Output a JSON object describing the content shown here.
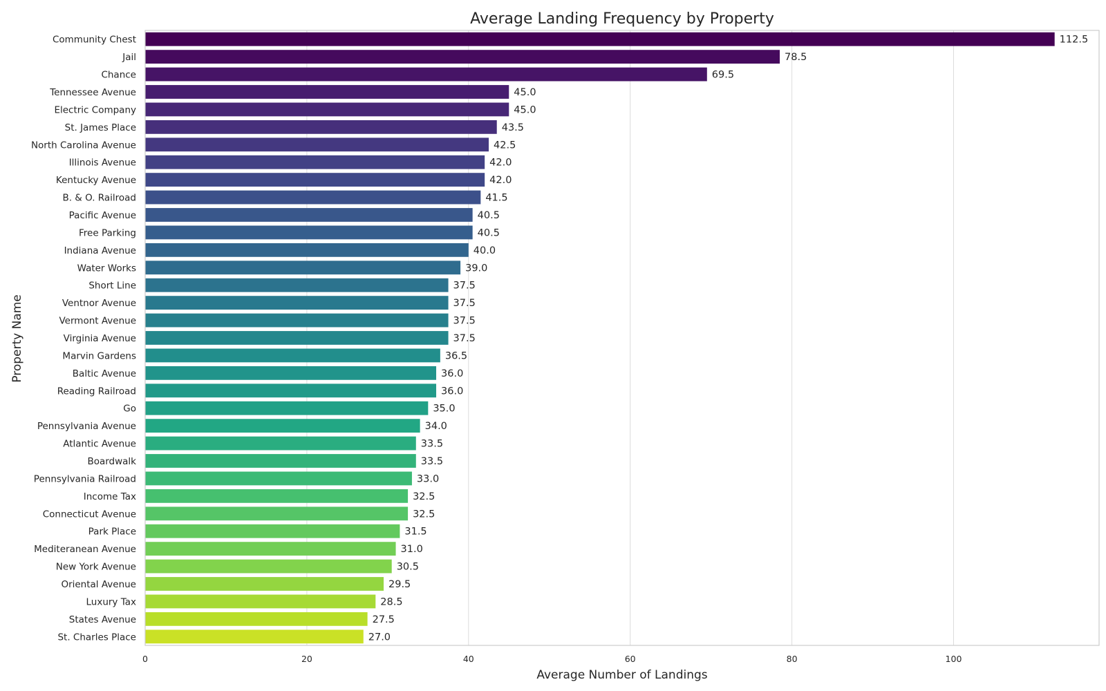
{
  "chart_data": {
    "type": "bar",
    "orientation": "horizontal",
    "title": "Average Landing Frequency by Property",
    "xlabel": "Average Number of Landings",
    "ylabel": "Property Name",
    "xlim": [
      0,
      118
    ],
    "xticks": [
      0,
      20,
      40,
      60,
      80,
      100
    ],
    "grid": "vertical",
    "palette": "viridis",
    "categories": [
      "Community Chest",
      "Jail",
      "Chance",
      "Tennessee Avenue",
      "Electric Company",
      "St. James Place",
      "North Carolina Avenue",
      "Illinois Avenue",
      "Kentucky Avenue",
      "B. & O. Railroad",
      "Pacific Avenue",
      "Free Parking",
      "Indiana Avenue",
      "Water Works",
      "Short Line",
      "Ventnor Avenue",
      "Vermont Avenue",
      "Virginia Avenue",
      "Marvin Gardens",
      "Baltic Avenue",
      "Reading Railroad",
      "Go",
      "Pennsylvania Avenue",
      "Atlantic Avenue",
      "Boardwalk",
      "Pennsylvania Railroad",
      "Income Tax",
      "Connecticut Avenue",
      "Park Place",
      "Mediteranean Avenue",
      "New York Avenue",
      "Oriental Avenue",
      "Luxury Tax",
      "States Avenue",
      "St. Charles Place"
    ],
    "values": [
      112.5,
      78.5,
      69.5,
      45.0,
      45.0,
      43.5,
      42.5,
      42.0,
      42.0,
      41.5,
      40.5,
      40.5,
      40.0,
      39.0,
      37.5,
      37.5,
      37.5,
      37.5,
      36.5,
      36.0,
      36.0,
      35.0,
      34.0,
      33.5,
      33.5,
      33.0,
      32.5,
      32.5,
      31.5,
      31.0,
      30.5,
      29.5,
      28.5,
      27.5,
      27.0
    ],
    "value_labels": [
      "112.5",
      "78.5",
      "69.5",
      "45.0",
      "45.0",
      "43.5",
      "42.5",
      "42.0",
      "42.0",
      "41.5",
      "40.5",
      "40.5",
      "40.0",
      "39.0",
      "37.5",
      "37.5",
      "37.5",
      "37.5",
      "36.5",
      "36.0",
      "36.0",
      "35.0",
      "34.0",
      "33.5",
      "33.5",
      "33.0",
      "32.5",
      "32.5",
      "31.5",
      "31.0",
      "30.5",
      "29.5",
      "28.5",
      "27.5",
      "27.0"
    ],
    "colors": [
      "#440154",
      "#471164",
      "#481f70",
      "#472d7b",
      "#443a83",
      "#404688",
      "#3b528b",
      "#365d8d",
      "#31688e",
      "#2c728e",
      "#287c8e",
      "#24868e",
      "#21908d",
      "#1f9a8a",
      "#20a486",
      "#27ad81",
      "#35b779",
      "#47c16e",
      "#5ec962",
      "#75d054",
      "#8fd744",
      "#a8db34",
      "#c2df23",
      "#dde318",
      "#e4e419",
      "#440154",
      "#440154",
      "#440154",
      "#440154",
      "#440154",
      "#440154",
      "#440154",
      "#440154",
      "#440154",
      "#440154"
    ]
  }
}
